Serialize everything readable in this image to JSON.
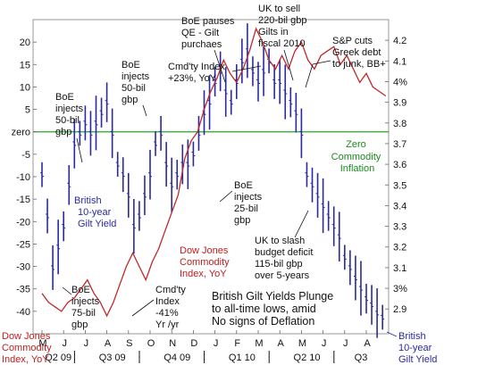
{
  "chart_data": {
    "type": "line",
    "title": "British Gilt Yields Plunge to all-time lows, amid No signs of Deflation",
    "title_lines": [
      "British Gilt Yields Plunge",
      "to all-time lows, amid",
      "No signs of Deflation"
    ],
    "left_axis": {
      "ticks": [
        20,
        15,
        10,
        5,
        0,
        -5,
        -10,
        -15,
        -20,
        -25,
        -30,
        -35,
        -40
      ],
      "tick_labels": [
        "20",
        "15",
        "10",
        "5",
        "zero",
        "-5",
        "-10",
        "-15",
        "-20",
        "-25",
        "-30",
        "-35",
        "-40"
      ],
      "range": [
        -45,
        25
      ]
    },
    "right_axis": {
      "ticks": [
        4.2,
        4.1,
        4.0,
        3.9,
        3.8,
        3.7,
        3.6,
        3.5,
        3.4,
        3.3,
        3.2,
        3.1,
        3.0,
        2.9
      ],
      "tick_labels": [
        "4.2",
        "4.1",
        "4%",
        "3.9",
        "3.8",
        "3.7",
        "3.6",
        "3.5",
        "3.4",
        "3.3",
        "3.2",
        "3.1",
        "3%",
        "2.9"
      ],
      "range": [
        2.78,
        4.3
      ]
    },
    "x_months": [
      "M",
      "J",
      "J",
      "A",
      "S",
      "O",
      "N",
      "D",
      "J",
      "F",
      "M",
      "A",
      "M",
      "J",
      "J",
      "A"
    ],
    "x_quarters": [
      "Q2 09",
      "Q3 09",
      "Q4 09",
      "Q1 10",
      "Q2 10",
      "Q3"
    ],
    "zero_line": {
      "value": 0,
      "label_lines": [
        "Zero",
        "Commodity",
        "Inflation"
      ],
      "color": "#22aa22"
    },
    "series": [
      {
        "name": "Dow Jones Commodity Index, YoY",
        "axis": "left",
        "color": "#c0282a",
        "x": [
          0.0,
          0.3,
          0.6,
          0.9,
          1.2,
          1.5,
          1.8,
          2.1,
          2.4,
          2.7,
          3.0,
          3.3,
          3.6,
          3.9,
          4.2,
          4.5,
          4.8,
          5.1,
          5.4,
          5.7,
          6.0,
          6.3,
          6.6,
          6.9,
          7.2,
          7.5,
          7.8,
          8.1,
          8.4,
          8.7,
          9.0,
          9.3,
          9.6,
          9.9,
          10.2,
          10.5,
          10.8,
          11.1,
          11.4,
          11.7,
          12.0,
          12.3,
          12.6,
          12.9,
          13.2,
          13.5,
          13.8,
          14.1,
          14.4,
          14.7,
          15.0,
          15.3,
          15.6,
          15.9
        ],
        "values": [
          -36,
          -38,
          -39,
          -40,
          -38,
          -37,
          -35,
          -33,
          -36,
          -38,
          -41,
          -38,
          -34,
          -30,
          -27,
          -30,
          -33,
          -29,
          -26,
          -22,
          -18,
          -14,
          -6,
          -2,
          0,
          5,
          9,
          12,
          16,
          13,
          11,
          14,
          18,
          23,
          20,
          16,
          14,
          17,
          14,
          18,
          20,
          16,
          14,
          17,
          18,
          19,
          15,
          17,
          14,
          11,
          13,
          10,
          9,
          8
        ]
      },
      {
        "name": "British 10-year Gilt Yield",
        "axis": "right",
        "color": "#2a2aa0",
        "x": [
          0.0,
          0.25,
          0.5,
          0.75,
          1.0,
          1.25,
          1.5,
          1.75,
          2.0,
          2.25,
          2.5,
          2.75,
          3.0,
          3.25,
          3.5,
          3.75,
          4.0,
          4.25,
          4.5,
          4.75,
          5.0,
          5.25,
          5.5,
          5.75,
          6.0,
          6.25,
          6.5,
          6.75,
          7.0,
          7.25,
          7.5,
          7.75,
          8.0,
          8.25,
          8.5,
          8.75,
          9.0,
          9.25,
          9.5,
          9.75,
          10.0,
          10.25,
          10.5,
          10.75,
          11.0,
          11.25,
          11.5,
          11.75,
          12.0,
          12.25,
          12.5,
          12.75,
          13.0,
          13.25,
          13.5,
          13.75,
          14.0,
          14.25,
          14.5,
          14.75,
          15.0,
          15.25,
          15.5,
          15.75
        ],
        "values": [
          3.55,
          3.35,
          3.1,
          3.2,
          3.3,
          3.5,
          3.7,
          3.75,
          3.8,
          3.75,
          3.8,
          3.85,
          3.9,
          3.75,
          3.6,
          3.55,
          3.45,
          3.3,
          3.35,
          3.45,
          3.55,
          3.7,
          3.75,
          3.6,
          3.5,
          3.55,
          3.6,
          3.6,
          3.65,
          3.75,
          3.85,
          3.9,
          4.0,
          4.05,
          3.95,
          3.9,
          4.0,
          4.1,
          4.15,
          4.05,
          4.0,
          4.05,
          4.1,
          4.0,
          4.0,
          3.95,
          3.9,
          3.85,
          3.75,
          3.55,
          3.5,
          3.45,
          3.4,
          3.35,
          3.3,
          3.25,
          3.15,
          3.1,
          3.05,
          3.0,
          2.95,
          2.92,
          2.88,
          2.86
        ]
      }
    ],
    "annotations": [
      {
        "lines": [
          "BoE pauses",
          "QE - Gilt",
          "purchaes"
        ]
      },
      {
        "lines": [
          "UK to sell",
          "220-bil gbp",
          "Gilts in",
          "fiscal 2010"
        ]
      },
      {
        "lines": [
          "S&P cuts",
          "Greek debt",
          "to junk, BB+"
        ]
      },
      {
        "lines": [
          "Cmd'ty Index",
          "+23%, YoY"
        ]
      },
      {
        "lines": [
          "BoE",
          "injects",
          "50-bil",
          "gbp"
        ]
      },
      {
        "lines": [
          "BoE",
          "injects",
          "50-bil",
          "gbp"
        ]
      },
      {
        "lines": [
          "BoE",
          "injects",
          "25-bil",
          "gbp"
        ]
      },
      {
        "lines": [
          "British",
          "10-year",
          "Gilt Yield"
        ]
      },
      {
        "lines": [
          "Dow Jones",
          "Commodity",
          "Index, YoY"
        ]
      },
      {
        "lines": [
          "UK to slash",
          "budget deficit",
          "115-bil gbp",
          "over 5-years"
        ]
      },
      {
        "lines": [
          "BoE",
          "injects",
          "75-bil",
          "gbp"
        ]
      },
      {
        "lines": [
          "Cmd'ty",
          "Index",
          "-41%",
          "Yr /yr"
        ]
      },
      {
        "lines": [
          "Dow Jones",
          "Commodity",
          "Index, YoY"
        ]
      },
      {
        "lines": [
          "British",
          "10-year",
          "Gilt Yield"
        ]
      }
    ]
  }
}
